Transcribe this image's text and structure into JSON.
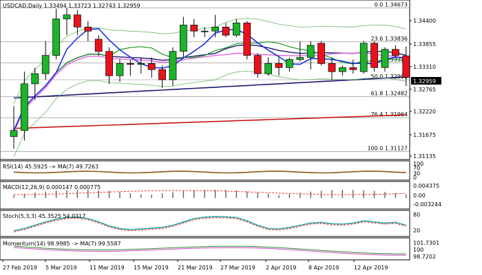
{
  "colors": {
    "bull": "#1db42a",
    "bear": "#e8121c",
    "blue_fast": "#1d2fe6",
    "navy_slow": "#191970",
    "red_long": "#c81414",
    "magenta": "#e066e0",
    "green_line": "#1a9a1a",
    "bb_green": "#66b866",
    "fib_line": "#808080",
    "macd_bar": "#606060",
    "macd_signal": "#ff3030",
    "stoch_main": "#2aa7a7",
    "stoch_signal": "#ff2020",
    "mom_main": "#cc44cc",
    "mom_signal": "#2a8a2a",
    "rsi_main": "#b03030",
    "rsi_signal": "#707000"
  },
  "header": {
    "text": "USDCAD,Daily  1.33494 1.33723 1.32743 1.32959"
  },
  "price_axis": {
    "labels": [
      "1.34400",
      "1.33855",
      "1.33310",
      "1.32959",
      "1.32765",
      "1.32220",
      "1.31675",
      "1.31135"
    ],
    "current_price": "1.32959"
  },
  "fib_levels": [
    {
      "label": "0.0 1.34673",
      "value": 1.34673
    },
    {
      "label": "23.6 1.33836",
      "value": 1.33836
    },
    {
      "label": "38.2 1.33318",
      "value": 1.33318
    },
    {
      "label": "50.0 1.32900",
      "value": 1.329
    },
    {
      "label": "61.8 1.32482",
      "value": 1.32482
    },
    {
      "label": "76.4 1.31964",
      "value": 1.31964
    },
    {
      "label": "100.0 1.31127",
      "value": 1.31127
    }
  ],
  "indicators": {
    "rsi": {
      "label": "RSI(14) 45.5925  -> MA(7) 49.7263",
      "scale": [
        "100",
        "70",
        "30",
        "0"
      ]
    },
    "macd": {
      "label": "MACD(12,26,9) 0.000147 0.000775",
      "scale": [
        "0.004375",
        "0.00",
        "-0.003244"
      ]
    },
    "stoch": {
      "label": "Stoch(5,3,3) 45.3525 54.0317",
      "scale": [
        "80",
        "20"
      ]
    },
    "momentum": {
      "label": "Momentum(14) 98.9985  -> MA(7) 99.5587",
      "scale": [
        "101.7301",
        "100",
        "98.7202"
      ]
    }
  },
  "x_axis": {
    "labels": [
      "27 Feb 2019",
      "5 Mar 2019",
      "11 Mar 2019",
      "15 Mar 2019",
      "21 Mar 2019",
      "27 Mar 2019",
      "2 Apr 2019",
      "8 Apr 2019",
      "12 Apr 2019"
    ]
  },
  "chart_data": {
    "type": "candlestick",
    "symbol": "USDCAD",
    "timeframe": "Daily",
    "price_range": [
      1.3095,
      1.3485
    ],
    "candles": [
      {
        "o": 1.315,
        "h": 1.3225,
        "l": 1.312,
        "c": 1.3165
      },
      {
        "o": 1.3165,
        "h": 1.331,
        "l": 1.314,
        "c": 1.328
      },
      {
        "o": 1.328,
        "h": 1.332,
        "l": 1.324,
        "c": 1.3305
      },
      {
        "o": 1.3305,
        "h": 1.3385,
        "l": 1.329,
        "c": 1.335
      },
      {
        "o": 1.335,
        "h": 1.3465,
        "l": 1.334,
        "c": 1.344
      },
      {
        "o": 1.344,
        "h": 1.3467,
        "l": 1.34,
        "c": 1.345
      },
      {
        "o": 1.345,
        "h": 1.3462,
        "l": 1.34,
        "c": 1.342
      },
      {
        "o": 1.342,
        "h": 1.3435,
        "l": 1.3385,
        "c": 1.341
      },
      {
        "o": 1.339,
        "h": 1.34,
        "l": 1.335,
        "c": 1.336
      },
      {
        "o": 1.336,
        "h": 1.337,
        "l": 1.328,
        "c": 1.33
      },
      {
        "o": 1.33,
        "h": 1.334,
        "l": 1.3285,
        "c": 1.333
      },
      {
        "o": 1.333,
        "h": 1.334,
        "l": 1.33,
        "c": 1.3328
      },
      {
        "o": 1.3328,
        "h": 1.3345,
        "l": 1.3305,
        "c": 1.333
      },
      {
        "o": 1.333,
        "h": 1.3345,
        "l": 1.3295,
        "c": 1.3315
      },
      {
        "o": 1.3315,
        "h": 1.3325,
        "l": 1.327,
        "c": 1.329
      },
      {
        "o": 1.329,
        "h": 1.337,
        "l": 1.3275,
        "c": 1.336
      },
      {
        "o": 1.336,
        "h": 1.3445,
        "l": 1.3345,
        "c": 1.3425
      },
      {
        "o": 1.3425,
        "h": 1.344,
        "l": 1.3395,
        "c": 1.341
      },
      {
        "o": 1.341,
        "h": 1.342,
        "l": 1.3395,
        "c": 1.341
      },
      {
        "o": 1.341,
        "h": 1.345,
        "l": 1.3395,
        "c": 1.342
      },
      {
        "o": 1.342,
        "h": 1.343,
        "l": 1.3395,
        "c": 1.34
      },
      {
        "o": 1.34,
        "h": 1.344,
        "l": 1.3395,
        "c": 1.343
      },
      {
        "o": 1.343,
        "h": 1.3435,
        "l": 1.334,
        "c": 1.335
      },
      {
        "o": 1.335,
        "h": 1.3355,
        "l": 1.3295,
        "c": 1.3305
      },
      {
        "o": 1.3305,
        "h": 1.3345,
        "l": 1.33,
        "c": 1.333
      },
      {
        "o": 1.333,
        "h": 1.3345,
        "l": 1.33,
        "c": 1.332
      },
      {
        "o": 1.332,
        "h": 1.3345,
        "l": 1.331,
        "c": 1.334
      },
      {
        "o": 1.334,
        "h": 1.3385,
        "l": 1.3335,
        "c": 1.3345
      },
      {
        "o": 1.3345,
        "h": 1.3385,
        "l": 1.3315,
        "c": 1.3375
      },
      {
        "o": 1.338,
        "h": 1.3385,
        "l": 1.3325,
        "c": 1.333
      },
      {
        "o": 1.333,
        "h": 1.3345,
        "l": 1.329,
        "c": 1.331
      },
      {
        "o": 1.331,
        "h": 1.3325,
        "l": 1.33,
        "c": 1.332
      },
      {
        "o": 1.332,
        "h": 1.334,
        "l": 1.3305,
        "c": 1.3315
      },
      {
        "o": 1.331,
        "h": 1.3385,
        "l": 1.3305,
        "c": 1.338
      },
      {
        "o": 1.338,
        "h": 1.3385,
        "l": 1.331,
        "c": 1.332
      },
      {
        "o": 1.332,
        "h": 1.337,
        "l": 1.331,
        "c": 1.3365
      },
      {
        "o": 1.3365,
        "h": 1.3375,
        "l": 1.3345,
        "c": 1.335
      },
      {
        "o": 1.3349,
        "h": 1.3372,
        "l": 1.3274,
        "c": 1.3296
      }
    ]
  }
}
